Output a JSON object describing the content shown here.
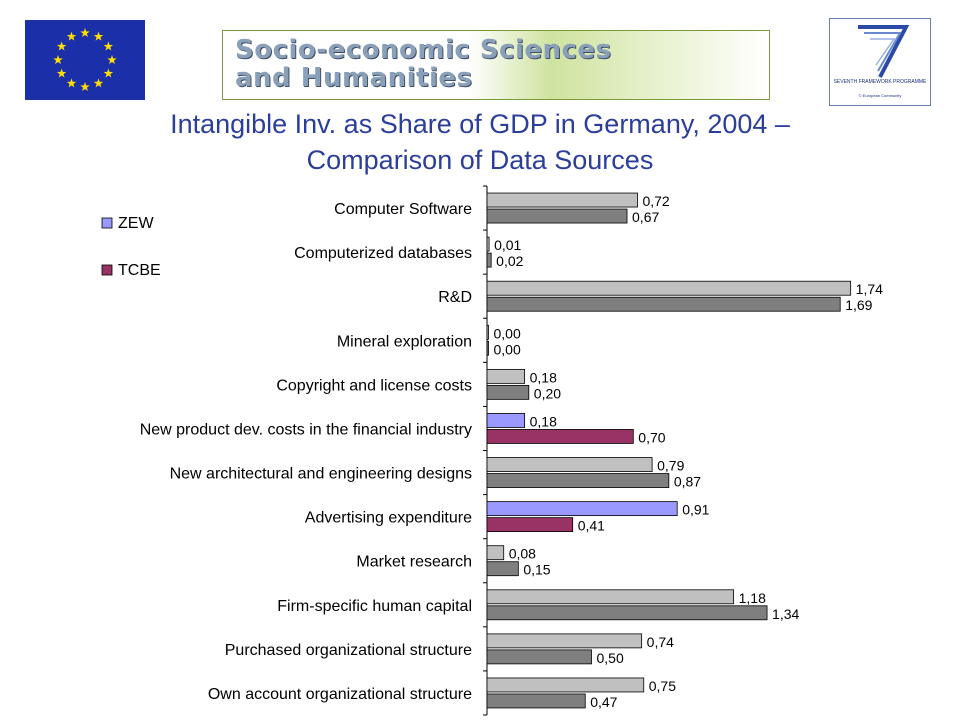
{
  "header": {
    "banner_line1": "Socio-economic Sciences",
    "banner_line2": "and Humanities",
    "fp7_caption": "SEVENTH FRAMEWORK PROGRAMME",
    "fp7_copyright": "© European Community"
  },
  "chart_data": {
    "type": "bar",
    "orientation": "horizontal",
    "title_line1": "Intangible Inv. as Share of GDP in Germany, 2004 –",
    "title_line2": "Comparison of Data Sources",
    "categories": [
      "Computer Software",
      "Computerized databases",
      "R&D",
      "Mineral exploration",
      "Copyright and license costs",
      "New product dev. costs in the financial industry",
      "New architectural and engineering designs",
      "Advertising expenditure",
      "Market research",
      "Firm-specific human capital",
      "Purchased organizational structure",
      "Own account organizational structure"
    ],
    "series": [
      {
        "name": "ZEW",
        "values": [
          0.72,
          0.01,
          1.74,
          0.0,
          0.18,
          0.18,
          0.79,
          0.91,
          0.08,
          1.18,
          0.74,
          0.75
        ]
      },
      {
        "name": "TCBE",
        "values": [
          0.67,
          0.02,
          1.69,
          0.0,
          0.2,
          0.7,
          0.87,
          0.41,
          0.15,
          1.34,
          0.5,
          0.47
        ]
      }
    ],
    "value_labels": [
      [
        "0,72",
        "0,01",
        "1,74",
        "0,00",
        "0,18",
        "0,18",
        "0,79",
        "0,91",
        "0,08",
        "1,18",
        "0,74",
        "0,75"
      ],
      [
        "0,67",
        "0,02",
        "1,69",
        "0,00",
        "0,20",
        "0,70",
        "0,87",
        "0,41",
        "0,15",
        "1,34",
        "0,50",
        "0,47"
      ]
    ],
    "highlighted_categories": [
      5,
      7
    ],
    "colors": {
      "zew_default": "#c0c0c0",
      "tcbe_default": "#7f7f7f",
      "zew_highlight": "#9999ff",
      "tcbe_highlight": "#993366",
      "axis": "#000000"
    },
    "xlim": [
      0,
      1.8
    ],
    "legend_position": "top-left",
    "grid": false
  }
}
